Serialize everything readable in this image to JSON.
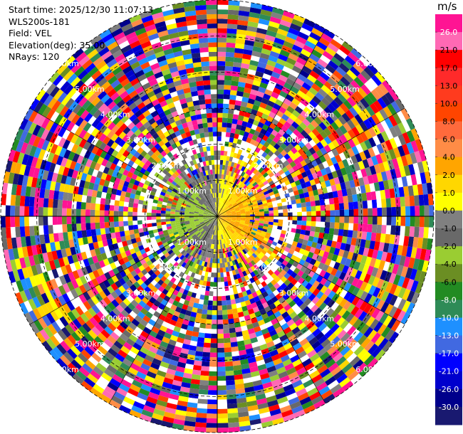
{
  "header": {
    "start_time": "Start time: 2025/12/30 11:07:13",
    "instrument": "WLS200s-181",
    "field": "Field: VEL",
    "elevation": "Elevation(deg): 35.00",
    "nrays": "NRays: 120"
  },
  "chart_data": {
    "type": "heatmap",
    "projection": "polar-ppi",
    "field": "VEL",
    "unit": "m/s",
    "elevation_deg": 35.0,
    "n_rays": 120,
    "n_range_gates": 46,
    "max_range_km": 6.0,
    "range_ring_labels": [
      "1.00km",
      "2.00km",
      "3.00km",
      "4.00km",
      "5.00km",
      "6.00km"
    ],
    "range_ring_km": [
      1,
      2,
      3,
      4,
      5,
      6
    ],
    "ring_label_azimuths_deg": [
      45,
      135,
      225,
      315
    ],
    "colorbar": {
      "ticks": [
        "26.0",
        "21.0",
        "17.0",
        "13.0",
        "10.0",
        "8.0",
        "6.0",
        "4.0",
        "2.0",
        "1.0",
        "0.0",
        "-1.0",
        "-2.0",
        "-4.0",
        "-6.0",
        "-8.0",
        "-10.0",
        "-13.0",
        "-17.0",
        "-21.0",
        "-26.0",
        "-30.0"
      ],
      "colors": [
        "#ff1493",
        "#ff69b4",
        "#ff0000",
        "#ff2a2a",
        "#ff3b1e",
        "#ff4500",
        "#ff6a3c",
        "#ff8c46",
        "#ffa500",
        "#ffd700",
        "#ffff00",
        "#808080",
        "#696969",
        "#9acd32",
        "#6b8e23",
        "#228b22",
        "#2e8b57",
        "#1e90ff",
        "#4169e1",
        "#0000ff",
        "#0000cd",
        "#00008b",
        "#191970"
      ]
    },
    "near_field_velocities_m_s": [
      -2,
      -1.5,
      -1,
      0,
      1,
      2,
      3,
      4
    ]
  }
}
